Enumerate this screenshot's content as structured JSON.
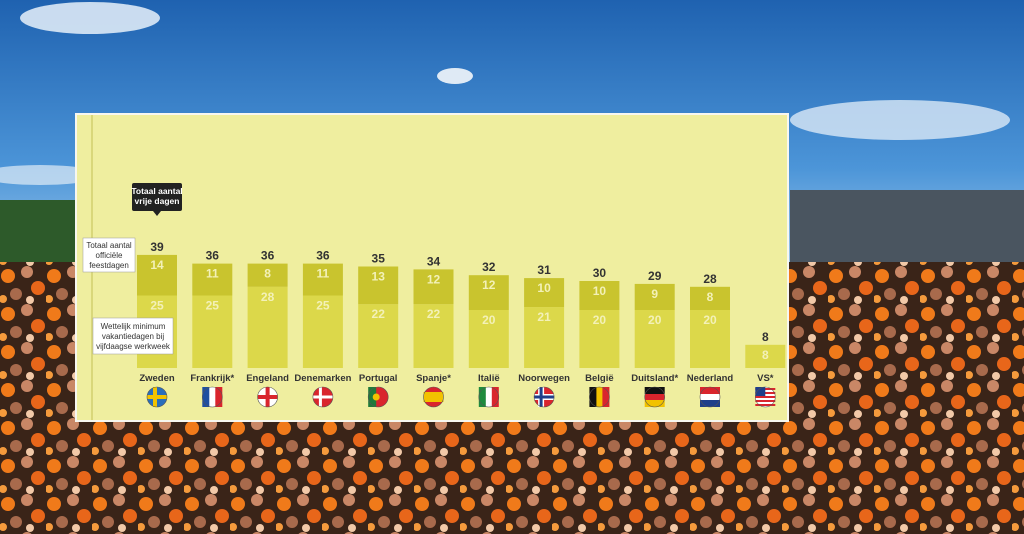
{
  "colors": {
    "panel": "#efee9f",
    "holiday_segment": "#c9c42e",
    "vacation_segment": "#dcd84a",
    "total_label": "#333333",
    "segment_label": "#f3f1b8",
    "callout_dark": "#222222"
  },
  "callouts": {
    "total": "Totaal aantal vrije dagen",
    "holidays": "Totaal aantal officiële feestdagen",
    "vacation": "Wettelijk minimum vakantiedagen bij vijfdaagse werkweek"
  },
  "chart_data": {
    "type": "bar",
    "stacked": true,
    "categories": [
      "Zweden",
      "Frankrijk*",
      "Engeland",
      "Denemarken",
      "Portugal",
      "Spanje*",
      "Italië",
      "Noorwegen",
      "België",
      "Duitsland*",
      "Nederland",
      "VS*"
    ],
    "totals": [
      39,
      36,
      36,
      36,
      35,
      34,
      32,
      31,
      30,
      29,
      28,
      8
    ],
    "series": [
      {
        "name": "Totaal aantal officiële feestdagen",
        "values": [
          14,
          11,
          8,
          11,
          13,
          12,
          12,
          10,
          10,
          9,
          8,
          null
        ]
      },
      {
        "name": "Wettelijk minimum vakantiedagen bij vijfdaagse werkweek",
        "values": [
          25,
          25,
          28,
          25,
          22,
          22,
          20,
          21,
          20,
          20,
          20,
          8
        ]
      }
    ],
    "flags": [
      "sweden-flag-icon",
      "france-flag-icon",
      "england-flag-icon",
      "denmark-flag-icon",
      "portugal-flag-icon",
      "spain-flag-icon",
      "italy-flag-icon",
      "norway-flag-icon",
      "belgium-flag-icon",
      "germany-flag-icon",
      "netherlands-flag-icon",
      "usa-flag-icon"
    ],
    "xlabel": "",
    "ylabel": "",
    "ylim": [
      0,
      40
    ],
    "grid": false,
    "legend": "callouts"
  }
}
